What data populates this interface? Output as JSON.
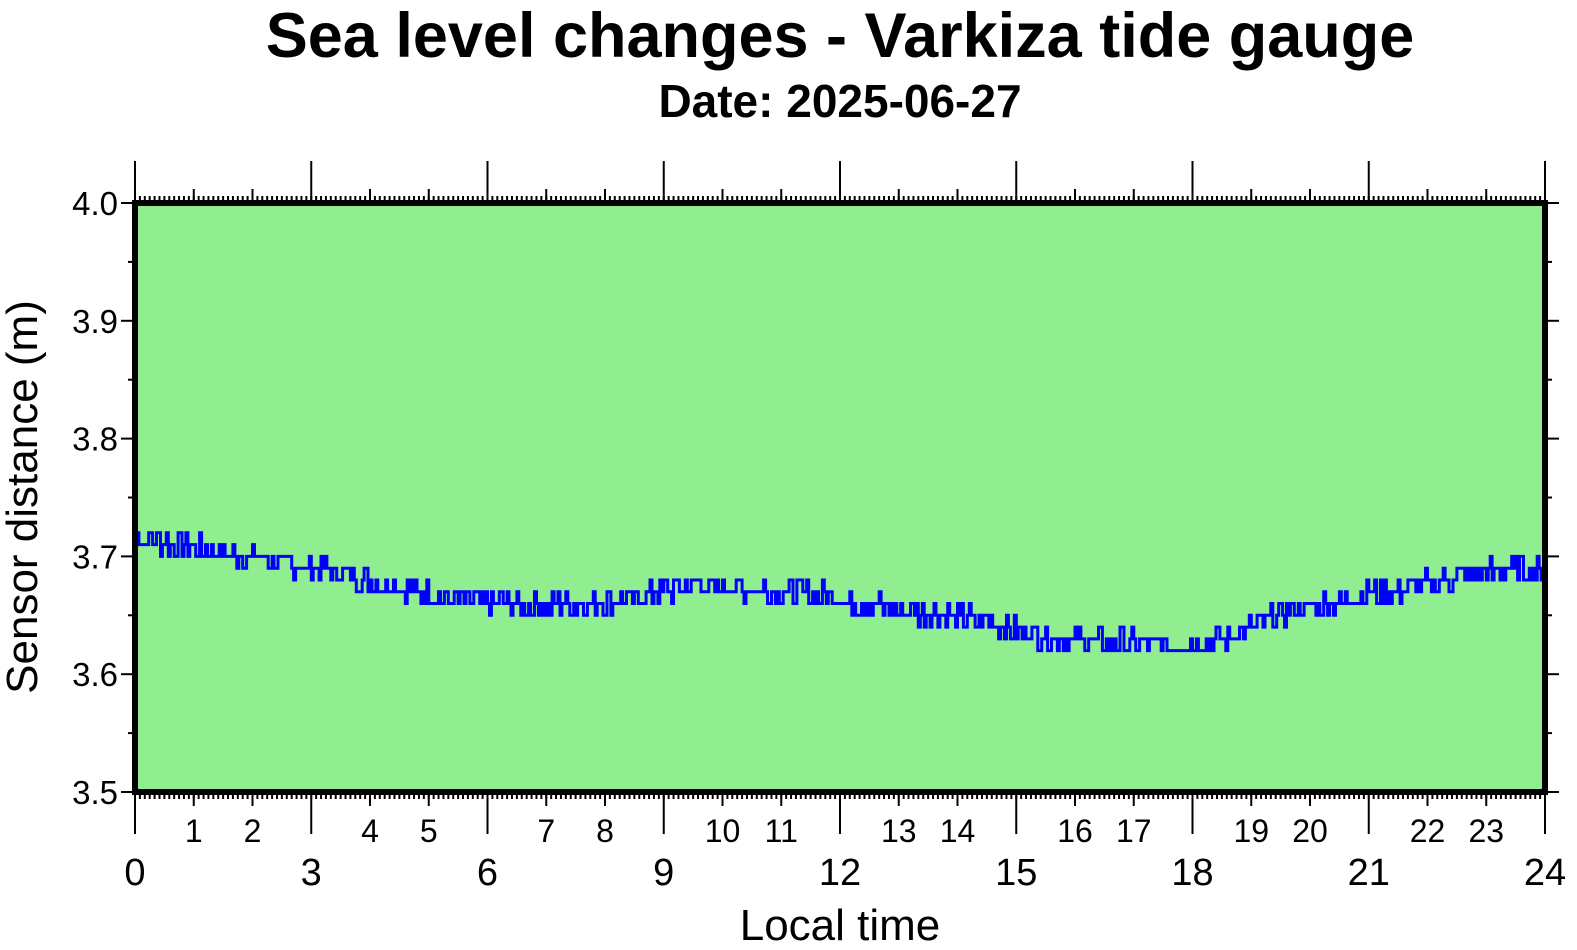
{
  "chart_data": {
    "type": "line",
    "title": "Sea level changes - Varkiza tide gauge",
    "subtitle": "Date: 2025-06-27",
    "xlabel": "Local time",
    "ylabel": "Sensor distance (m)",
    "xlim": [
      0,
      24
    ],
    "ylim": [
      3.5,
      4.0
    ],
    "x_major_ticks": [
      "0",
      "3",
      "6",
      "9",
      "12",
      "15",
      "18",
      "21",
      "24"
    ],
    "x_minor_tick_labels": [
      "1",
      "2",
      "4",
      "5",
      "7",
      "8",
      "10",
      "11",
      "13",
      "14",
      "16",
      "17",
      "19",
      "20",
      "22",
      "23"
    ],
    "y_ticks": [
      "3.5",
      "3.6",
      "3.7",
      "3.8",
      "3.9",
      "4.0"
    ],
    "grid": false,
    "colors": {
      "background": "#90ee90",
      "line": "#0000ff",
      "frame": "#000000"
    },
    "series": [
      {
        "x": [
          0,
          0.5,
          1,
          1.5,
          2,
          2.5,
          3,
          3.5,
          4,
          4.5,
          5,
          5.5,
          6,
          6.5,
          7,
          7.5,
          8,
          8.5,
          9,
          9.5,
          10,
          10.5,
          11,
          11.5,
          12,
          12.5,
          13,
          13.5,
          14,
          14.5,
          15,
          15.5,
          16,
          16.5,
          17,
          17.5,
          18,
          18.5,
          19,
          19.5,
          20,
          20.5,
          21,
          21.5,
          22,
          22.5,
          23,
          23.5,
          24
        ],
        "values": [
          3.715,
          3.712,
          3.706,
          3.703,
          3.699,
          3.694,
          3.689,
          3.686,
          3.679,
          3.674,
          3.667,
          3.663,
          3.661,
          3.659,
          3.658,
          3.659,
          3.661,
          3.666,
          3.671,
          3.675,
          3.675,
          3.673,
          3.671,
          3.668,
          3.664,
          3.659,
          3.654,
          3.652,
          3.649,
          3.645,
          3.638,
          3.633,
          3.63,
          3.628,
          3.626,
          3.625,
          3.626,
          3.63,
          3.641,
          3.651,
          3.658,
          3.663,
          3.668,
          3.671,
          3.676,
          3.681,
          3.686,
          3.69,
          3.688
        ]
      }
    ]
  }
}
